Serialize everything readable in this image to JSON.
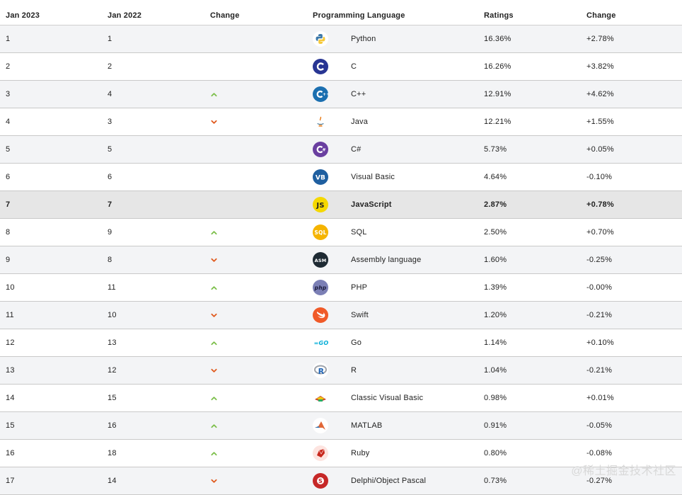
{
  "headers": {
    "jan2023": "Jan 2023",
    "jan2022": "Jan 2022",
    "change": "Change",
    "language": "Programming Language",
    "ratings": "Ratings",
    "change2": "Change"
  },
  "rows": [
    {
      "r23": "1",
      "r22": "1",
      "dir": "none",
      "icon": "python-icon",
      "lang": "Python",
      "rating": "16.36%",
      "delta": "+2.78%"
    },
    {
      "r23": "2",
      "r22": "2",
      "dir": "none",
      "icon": "c-icon",
      "lang": "C",
      "rating": "16.26%",
      "delta": "+3.82%"
    },
    {
      "r23": "3",
      "r22": "4",
      "dir": "up",
      "icon": "cpp-icon",
      "lang": "C++",
      "rating": "12.91%",
      "delta": "+4.62%"
    },
    {
      "r23": "4",
      "r22": "3",
      "dir": "down",
      "icon": "java-icon",
      "lang": "Java",
      "rating": "12.21%",
      "delta": "+1.55%"
    },
    {
      "r23": "5",
      "r22": "5",
      "dir": "none",
      "icon": "csharp-icon",
      "lang": "C#",
      "rating": "5.73%",
      "delta": "+0.05%"
    },
    {
      "r23": "6",
      "r22": "6",
      "dir": "none",
      "icon": "visual-basic-icon",
      "lang": "Visual Basic",
      "rating": "4.64%",
      "delta": "-0.10%"
    },
    {
      "r23": "7",
      "r22": "7",
      "dir": "none",
      "icon": "javascript-icon",
      "lang": "JavaScript",
      "rating": "2.87%",
      "delta": "+0.78%",
      "highlight": true
    },
    {
      "r23": "8",
      "r22": "9",
      "dir": "up",
      "icon": "sql-icon",
      "lang": "SQL",
      "rating": "2.50%",
      "delta": "+0.70%"
    },
    {
      "r23": "9",
      "r22": "8",
      "dir": "down",
      "icon": "assembly-icon",
      "lang": "Assembly language",
      "rating": "1.60%",
      "delta": "-0.25%"
    },
    {
      "r23": "10",
      "r22": "11",
      "dir": "up",
      "icon": "php-icon",
      "lang": "PHP",
      "rating": "1.39%",
      "delta": "-0.00%"
    },
    {
      "r23": "11",
      "r22": "10",
      "dir": "down",
      "icon": "swift-icon",
      "lang": "Swift",
      "rating": "1.20%",
      "delta": "-0.21%"
    },
    {
      "r23": "12",
      "r22": "13",
      "dir": "up",
      "icon": "go-icon",
      "lang": "Go",
      "rating": "1.14%",
      "delta": "+0.10%"
    },
    {
      "r23": "13",
      "r22": "12",
      "dir": "down",
      "icon": "r-icon",
      "lang": "R",
      "rating": "1.04%",
      "delta": "-0.21%"
    },
    {
      "r23": "14",
      "r22": "15",
      "dir": "up",
      "icon": "classic-visual-basic-icon",
      "lang": "Classic Visual Basic",
      "rating": "0.98%",
      "delta": "+0.01%"
    },
    {
      "r23": "15",
      "r22": "16",
      "dir": "up",
      "icon": "matlab-icon",
      "lang": "MATLAB",
      "rating": "0.91%",
      "delta": "-0.05%"
    },
    {
      "r23": "16",
      "r22": "18",
      "dir": "up",
      "icon": "ruby-icon",
      "lang": "Ruby",
      "rating": "0.80%",
      "delta": "-0.08%"
    },
    {
      "r23": "17",
      "r22": "14",
      "dir": "down",
      "icon": "delphi-icon",
      "lang": "Delphi/Object Pascal",
      "rating": "0.73%",
      "delta": "-0.27%"
    }
  ],
  "watermark": "@稀土掘金技术社区",
  "colors": {
    "up": "#7cbf4a",
    "down": "#e05a1e",
    "highlight_row": "#e6e6e6",
    "stripe": "#f3f4f6"
  }
}
